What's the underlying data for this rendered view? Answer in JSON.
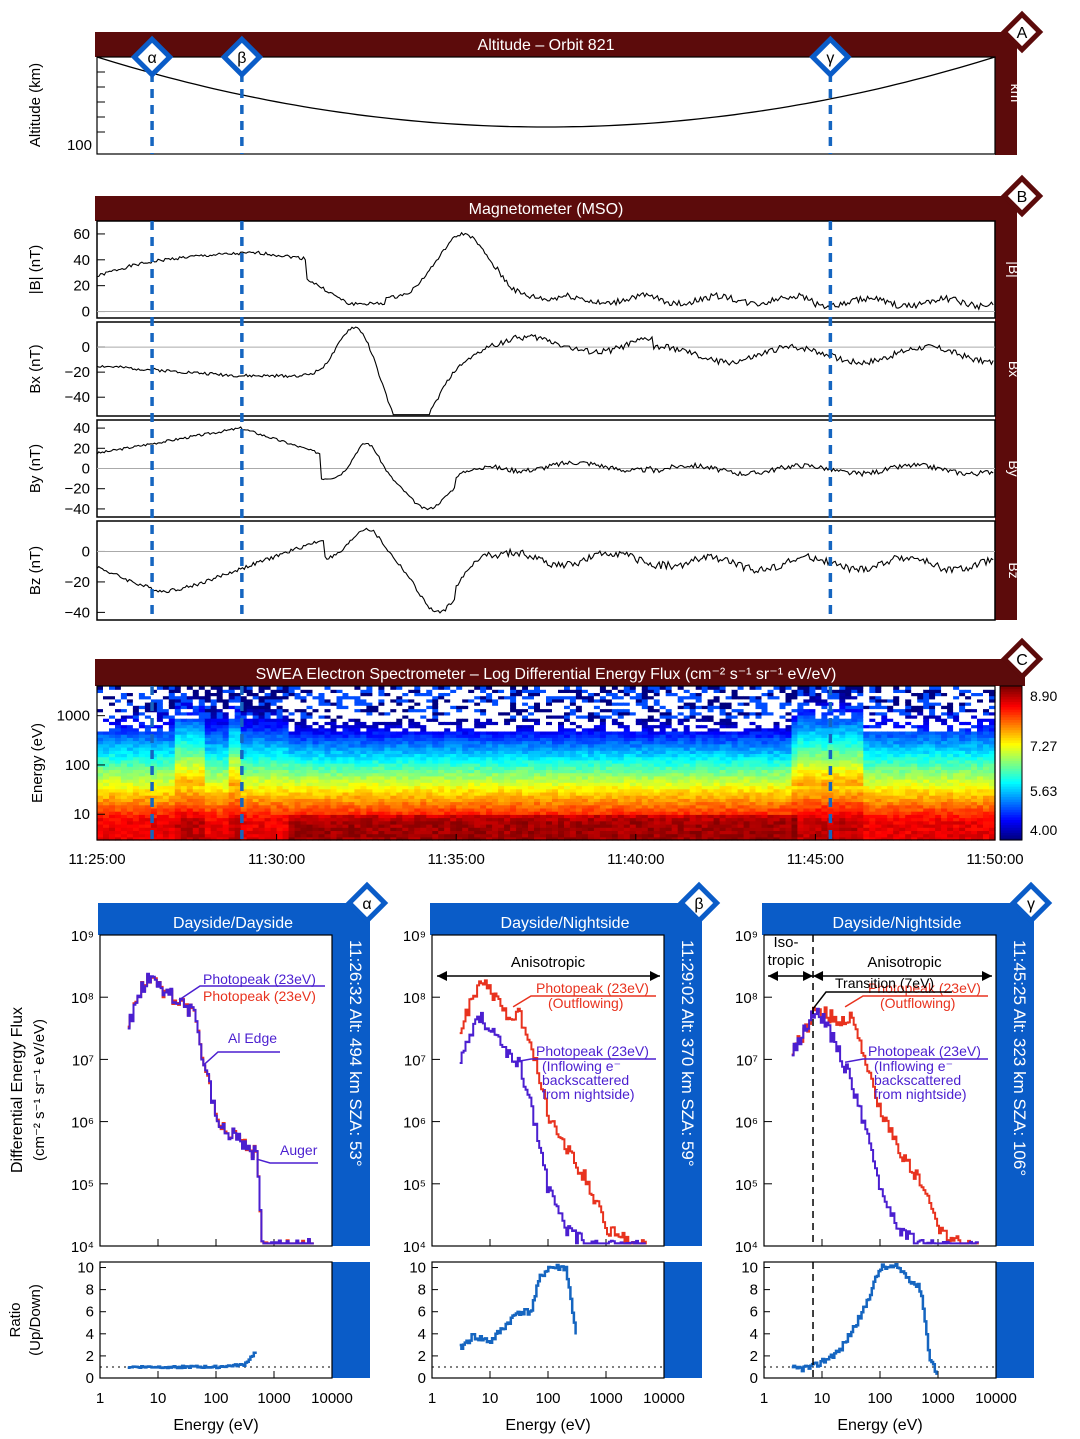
{
  "colors": {
    "maroon": "#5c0b0b",
    "blue": "#0a5cc8",
    "red": "#e8321e",
    "purple": "#4b1fd0",
    "dash": "#1565c0"
  },
  "markers": {
    "alpha": "α",
    "beta": "β",
    "gamma": "γ"
  },
  "panel_A": {
    "badge": "A",
    "title": "Altitude – Orbit 821",
    "ylabel": "Altitude (km)",
    "right_label": "km",
    "ytick": "100"
  },
  "panel_B": {
    "badge": "B",
    "title": "Magnetometer (MSO)",
    "rows": [
      {
        "ylabel": "|B| (nT)",
        "right": "|B|",
        "ticks": [
          "60",
          "40",
          "20",
          "0"
        ]
      },
      {
        "ylabel": "Bx (nT)",
        "right": "Bx",
        "ticks": [
          "0",
          "−20",
          "−40"
        ]
      },
      {
        "ylabel": "By (nT)",
        "right": "By",
        "ticks": [
          "40",
          "20",
          "0",
          "−20",
          "−40"
        ]
      },
      {
        "ylabel": "Bz (nT)",
        "right": "Bz",
        "ticks": [
          "0",
          "−20",
          "−40"
        ]
      }
    ]
  },
  "panel_C": {
    "badge": "C",
    "title": "SWEA Electron Spectrometer – Log Differential Energy Flux (cm⁻² s⁻¹ sr⁻¹ eV/eV)",
    "ylabel": "Energy (eV)",
    "yticks": [
      "1000",
      "100",
      "10"
    ],
    "colorbar_ticks": [
      "8.90",
      "7.27",
      "5.63",
      "4.00"
    ],
    "time_ticks": [
      "11:25:00",
      "11:30:00",
      "11:35:00",
      "11:40:00",
      "11:45:00",
      "11:50:00"
    ]
  },
  "spectra": {
    "ylabel1": "Differential Energy Flux",
    "ylabel2": "(cm⁻² s⁻¹ sr⁻¹ eV/eV)",
    "ratio_ylabel1": "Ratio",
    "ratio_ylabel2": "(Up/Down)",
    "xlabel": "Energy (eV)",
    "xticks": [
      "1",
      "10",
      "100",
      "1000",
      "10000"
    ],
    "yticks": [
      "10⁹",
      "10⁸",
      "10⁷",
      "10⁶",
      "10⁵",
      "10⁴"
    ],
    "ratio_ticks": [
      "10",
      "8",
      "6",
      "4",
      "2",
      "0"
    ],
    "panels": [
      {
        "title": "Dayside/Dayside",
        "badge": "α",
        "side": "11:26:32  Alt:  494 km  SZA:  53°",
        "labels": {
          "pp_blue": "Photopeak (23eV)",
          "pp_red": "Photopeak (23eV)",
          "al": "Al Edge",
          "auger": "Auger"
        }
      },
      {
        "title": "Dayside/Nightside",
        "badge": "β",
        "side": "11:29:02  Alt:  370 km  SZA:  59°",
        "labels": {
          "aniso": "Anisotropic",
          "pp_red1": "Photopeak (23eV)",
          "pp_red2": "(Outflowing)",
          "pp_blue1": "Photopeak (23eV)",
          "pp_blue2": "(Inflowing e⁻",
          "pp_blue3": "backscattered",
          "pp_blue4": "from nightside)"
        }
      },
      {
        "title": "Dayside/Nightside",
        "badge": "γ",
        "side": "11:45:25  Alt:  323 km  SZA:  106°",
        "labels": {
          "iso1": "Iso-",
          "iso2": "tropic",
          "aniso": "Anisotropic",
          "transition": "Transition (7eV)",
          "pp_red1": "Photopeak (23eV)",
          "pp_red2": "(Outflowing)",
          "pp_blue1": "Photopeak (23eV)",
          "pp_blue2": "(Inflowing e⁻",
          "pp_blue3": "backscattered",
          "pp_blue4": "from nightside)"
        }
      }
    ]
  },
  "chart_data": [
    {
      "type": "line",
      "title": "Altitude – Orbit 821",
      "ylabel": "Altitude (km)",
      "x_range": [
        "11:25:00",
        "11:50:00"
      ],
      "x": [
        "11:25:00",
        "11:30:00",
        "11:35:00",
        "11:37:30",
        "11:40:00",
        "11:45:00",
        "11:50:00"
      ],
      "y": [
        500,
        370,
        250,
        230,
        250,
        330,
        500
      ]
    },
    {
      "type": "line",
      "title": "Magnetometer (MSO)",
      "x_range": [
        "11:25:00",
        "11:50:00"
      ],
      "x": [
        "11:25:00",
        "11:27:00",
        "11:29:00",
        "11:31:00",
        "11:32:00",
        "11:34:00",
        "11:36:00",
        "11:40:00",
        "11:45:00",
        "11:50:00"
      ],
      "series": [
        {
          "name": "|B|",
          "values": [
            25,
            45,
            47,
            20,
            10,
            55,
            20,
            10,
            12,
            8
          ]
        },
        {
          "name": "Bx",
          "values": [
            -15,
            -20,
            -25,
            -20,
            10,
            -40,
            5,
            0,
            -10,
            -5
          ]
        },
        {
          "name": "By",
          "values": [
            15,
            35,
            40,
            25,
            -5,
            -30,
            0,
            5,
            0,
            5
          ]
        },
        {
          "name": "Bz",
          "values": [
            -10,
            -25,
            5,
            10,
            -5,
            -35,
            -5,
            -5,
            -10,
            -5
          ]
        }
      ]
    },
    {
      "type": "heatmap",
      "title": "SWEA Electron Spectrometer – Log Differential Energy Flux (cm⁻² s⁻¹ sr⁻¹ eV/eV)",
      "ylabel": "Energy (eV)",
      "ylim": [
        3,
        4000
      ],
      "zlim": [
        4.0,
        8.9
      ],
      "x_range": [
        "11:25:00",
        "11:50:00"
      ]
    },
    {
      "type": "line",
      "xlabel": "Energy (eV)",
      "xlim": [
        1,
        10000
      ],
      "ylim": [
        10000,
        1000000000
      ],
      "x": [
        3,
        5,
        7,
        10,
        20,
        40,
        60,
        100,
        200,
        500,
        600,
        1000,
        3000
      ],
      "series": [
        {
          "name": "Up",
          "values": [
            35000000.0,
            150000000.0,
            220000000.0,
            150000000.0,
            90000000.0,
            60000000.0,
            8000000.0,
            1200000.0,
            600000.0,
            300000.0,
            10000.0,
            10000.0,
            10000.0
          ]
        },
        {
          "name": "Down",
          "values": [
            35000000.0,
            150000000.0,
            220000000.0,
            150000000.0,
            90000000.0,
            60000000.0,
            8000000.0,
            1200000.0,
            600000.0,
            300000.0,
            10000.0,
            10000.0,
            10000.0
          ]
        }
      ]
    },
    {
      "type": "line",
      "xlabel": "Energy (eV)",
      "xlim": [
        1,
        10000
      ],
      "ylim": [
        10000,
        1000000000
      ],
      "x": [
        3,
        5,
        7,
        10,
        20,
        30,
        50,
        70,
        100,
        200,
        500,
        1000,
        3000
      ],
      "series": [
        {
          "name": "Up",
          "values": [
            30000000.0,
            100000000.0,
            200000000.0,
            120000000.0,
            50000000.0,
            60000000.0,
            20000000.0,
            5000000.0,
            1200000.0,
            400000.0,
            100000.0,
            20000.0,
            10000.0
          ]
        },
        {
          "name": "Down",
          "values": [
            10000000.0,
            30000000.0,
            50000000.0,
            30000000.0,
            12000000.0,
            10000000.0,
            2000000.0,
            400000.0,
            80000.0,
            20000.0,
            10000.0,
            10000.0,
            10000.0
          ]
        }
      ]
    },
    {
      "type": "line",
      "xlabel": "Energy (eV)",
      "xlim": [
        1,
        10000
      ],
      "ylim": [
        10000,
        1000000000
      ],
      "x": [
        3,
        5,
        7,
        10,
        20,
        30,
        50,
        70,
        100,
        200,
        500,
        1000,
        3000
      ],
      "series": [
        {
          "name": "Up",
          "values": [
            15000000.0,
            30000000.0,
            60000000.0,
            60000000.0,
            40000000.0,
            50000000.0,
            15000000.0,
            4000000.0,
            1500000.0,
            400000.0,
            100000.0,
            20000.0,
            10000.0
          ]
        },
        {
          "name": "Down",
          "values": [
            15000000.0,
            30000000.0,
            60000000.0,
            50000000.0,
            12000000.0,
            5000000.0,
            1000000.0,
            300000.0,
            80000.0,
            20000.0,
            10000.0,
            10000.0,
            10000.0
          ]
        }
      ]
    },
    {
      "type": "line",
      "ylabel": "Ratio (Up/Down)",
      "xlim": [
        1,
        10000
      ],
      "ylim": [
        0,
        10
      ],
      "x": [
        3,
        10,
        50,
        100,
        300,
        500
      ],
      "y": [
        1,
        1,
        1,
        1,
        1.2,
        2.5
      ]
    },
    {
      "type": "line",
      "ylabel": "Ratio (Up/Down)",
      "xlim": [
        1,
        10000
      ],
      "ylim": [
        0,
        10
      ],
      "x": [
        3,
        5,
        10,
        20,
        30,
        50,
        70,
        100,
        200,
        300
      ],
      "y": [
        2.7,
        3.8,
        3.3,
        5,
        6,
        6,
        9,
        10,
        10,
        4
      ]
    },
    {
      "type": "line",
      "ylabel": "Ratio (Up/Down)",
      "xlim": [
        1,
        10000
      ],
      "ylim": [
        0,
        10
      ],
      "x": [
        3,
        7,
        10,
        20,
        30,
        50,
        70,
        100,
        200,
        500,
        700,
        1000
      ],
      "y": [
        0.8,
        1,
        1.5,
        2.5,
        4,
        6,
        8,
        10,
        10,
        8,
        2,
        0
      ]
    }
  ]
}
